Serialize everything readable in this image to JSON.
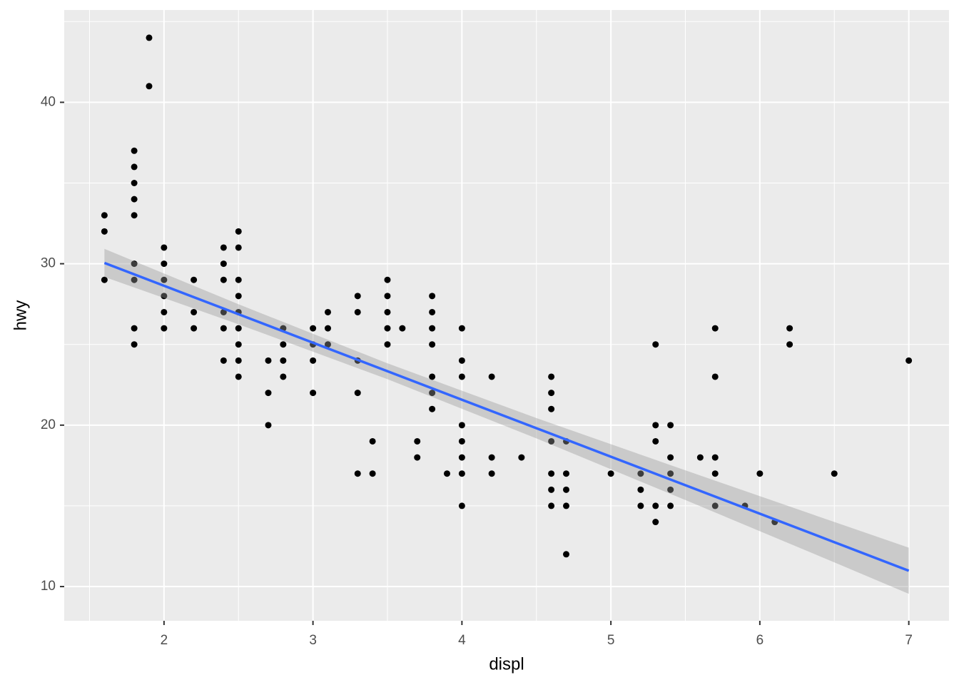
{
  "chart_data": {
    "type": "scatter",
    "x_label": "displ",
    "y_label": "hwy",
    "xlim": [
      1.33,
      7.27
    ],
    "ylim": [
      7.88,
      45.72
    ],
    "xticks": [
      2,
      3,
      4,
      5,
      6,
      7
    ],
    "yticks": [
      10,
      20,
      30,
      40
    ],
    "xminor": [
      1.5,
      2.5,
      3.5,
      4.5,
      5.5,
      6.5
    ],
    "yminor": [
      15,
      25,
      35,
      45
    ],
    "grid": true,
    "panel_color": "#ebebeb",
    "grid_color": "#ffffff",
    "points": {
      "color": "#000000",
      "x": [
        1.6,
        1.6,
        1.6,
        1.8,
        1.8,
        1.8,
        1.8,
        1.8,
        1.8,
        1.8,
        1.8,
        1.8,
        1.9,
        1.9,
        2,
        2,
        2,
        2,
        2,
        2,
        2.2,
        2.2,
        2.2,
        2.4,
        2.4,
        2.4,
        2.4,
        2.4,
        2.4,
        2.5,
        2.5,
        2.5,
        2.5,
        2.5,
        2.5,
        2.5,
        2.5,
        2.5,
        2.7,
        2.7,
        2.7,
        2.8,
        2.8,
        2.8,
        2.8,
        3,
        3,
        3,
        3,
        3.1,
        3.1,
        3.1,
        3.3,
        3.3,
        3.3,
        3.3,
        3.3,
        3.4,
        3.4,
        3.5,
        3.5,
        3.5,
        3.5,
        3.5,
        3.6,
        3.7,
        3.7,
        3.8,
        3.8,
        3.8,
        3.8,
        3.8,
        3.8,
        3.8,
        3.9,
        4,
        4,
        4,
        4,
        4,
        4,
        4,
        4,
        4.2,
        4.2,
        4.2,
        4.4,
        4.6,
        4.6,
        4.6,
        4.6,
        4.6,
        4.6,
        4.6,
        4.7,
        4.7,
        4.7,
        4.7,
        4.7,
        5,
        5.2,
        5.2,
        5.2,
        5.3,
        5.3,
        5.3,
        5.3,
        5.3,
        5.4,
        5.4,
        5.4,
        5.4,
        5.4,
        5.6,
        5.7,
        5.7,
        5.7,
        5.7,
        5.7,
        5.9,
        6,
        6.1,
        6.2,
        6.2,
        6.5,
        7
      ],
      "y": [
        33,
        32,
        29,
        37,
        36,
        35,
        34,
        33,
        30,
        29,
        26,
        25,
        44,
        41,
        31,
        30,
        29,
        28,
        27,
        26,
        29,
        27,
        26,
        31,
        30,
        29,
        27,
        26,
        24,
        32,
        31,
        29,
        28,
        27,
        26,
        25,
        24,
        23,
        24,
        22,
        20,
        26,
        25,
        24,
        23,
        26,
        25,
        24,
        22,
        27,
        26,
        25,
        28,
        27,
        24,
        22,
        17,
        19,
        17,
        29,
        28,
        27,
        26,
        25,
        26,
        19,
        18,
        28,
        27,
        26,
        25,
        23,
        22,
        21,
        17,
        26,
        24,
        23,
        20,
        19,
        18,
        17,
        15,
        23,
        18,
        17,
        18,
        23,
        22,
        21,
        19,
        17,
        16,
        15,
        19,
        17,
        16,
        15,
        12,
        17,
        17,
        16,
        15,
        25,
        20,
        19,
        15,
        14,
        20,
        18,
        17,
        16,
        15,
        18,
        26,
        23,
        18,
        17,
        15,
        15,
        17,
        14,
        26,
        25,
        17,
        24
      ]
    },
    "smooth": {
      "color": "#3366ff",
      "fill": "#999999",
      "x": [
        1.6,
        2.5,
        3.5,
        4.5,
        5.5,
        6.5,
        7
      ],
      "y": [
        30.05,
        26.87,
        23.34,
        19.81,
        16.28,
        12.75,
        10.98
      ],
      "lower": [
        29.18,
        26.25,
        22.85,
        19.18,
        15.36,
        11.5,
        9.55
      ],
      "upper": [
        30.92,
        27.49,
        23.83,
        20.44,
        17.2,
        14.0,
        12.41
      ]
    }
  }
}
